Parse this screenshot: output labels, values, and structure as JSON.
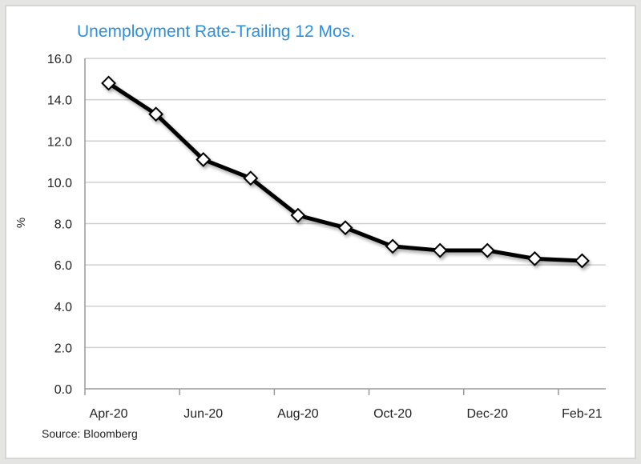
{
  "chart_data": {
    "type": "line",
    "title": "Unemployment Rate-Trailing 12 Mos.",
    "ylabel": "%",
    "xlabel": "",
    "source": "Source: Bloomberg",
    "ylim": [
      0,
      16
    ],
    "yticks": [
      "0.0",
      "2.0",
      "4.0",
      "6.0",
      "8.0",
      "10.0",
      "12.0",
      "14.0",
      "16.0"
    ],
    "categories": [
      "Apr-20",
      "May-20",
      "Jun-20",
      "Jul-20",
      "Aug-20",
      "Sep-20",
      "Oct-20",
      "Nov-20",
      "Dec-20",
      "Jan-21",
      "Feb-21"
    ],
    "xtick_labels_shown": [
      "Apr-20",
      "Jun-20",
      "Aug-20",
      "Oct-20",
      "Dec-20",
      "Feb-21"
    ],
    "series": [
      {
        "values": [
          14.8,
          13.3,
          11.1,
          10.2,
          8.4,
          7.8,
          6.9,
          6.7,
          6.7,
          6.3,
          6.2
        ]
      }
    ],
    "grid": "horizontal",
    "line_color": "#000000",
    "marker": "diamond",
    "marker_fill": "#ffffff",
    "title_color": "#2f8fd8"
  }
}
